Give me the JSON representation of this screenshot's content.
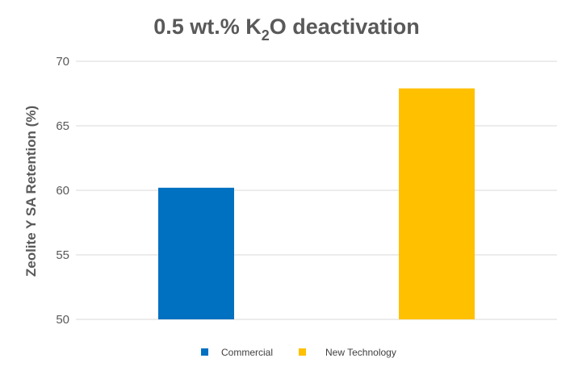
{
  "chart_data": {
    "type": "bar",
    "title": {
      "prefix": "0.5 wt.% K",
      "subscript": "2",
      "suffix": "O deactivation"
    },
    "xlabel": "",
    "ylabel": "Zeolite Y SA Retention (%)",
    "ylim": [
      50,
      70
    ],
    "yticks": [
      "50",
      "55",
      "60",
      "65",
      "70"
    ],
    "grid": true,
    "legend_position": "bottom",
    "series": [
      {
        "name": "Commercial",
        "value": 60.2,
        "color": "#0070C0"
      },
      {
        "name": "New Technology",
        "value": 67.9,
        "color": "#FFC000"
      }
    ]
  }
}
